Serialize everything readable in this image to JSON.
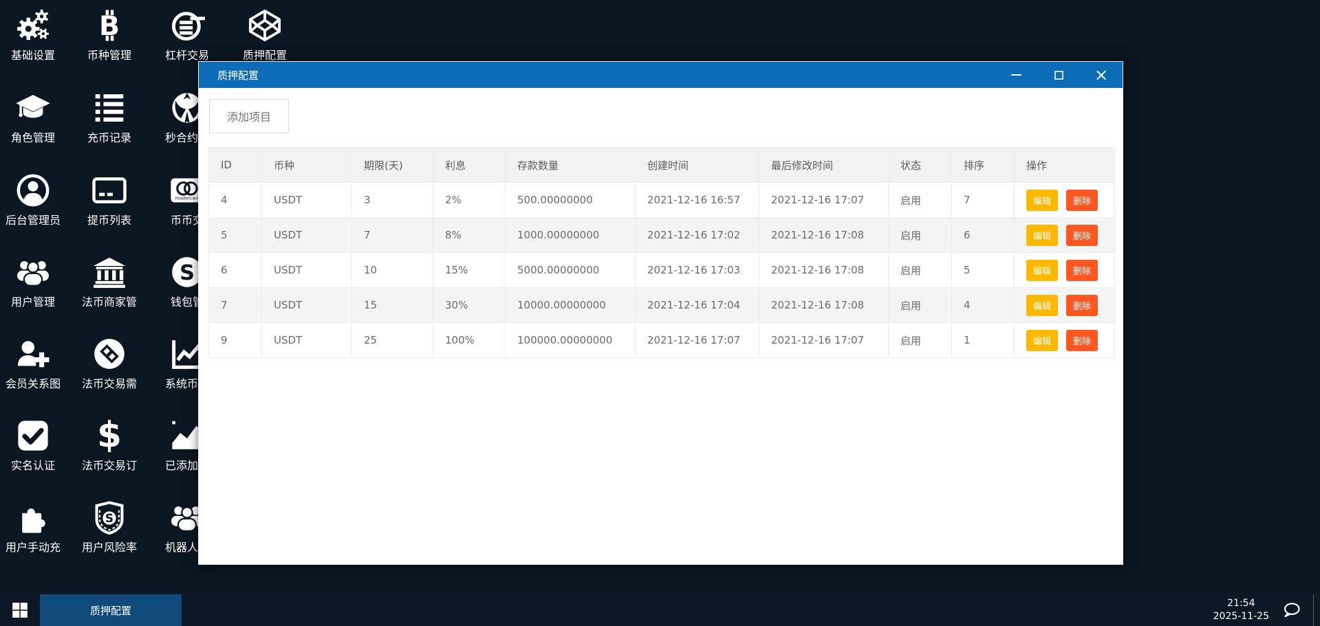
{
  "desktop": {
    "icons": [
      {
        "label": "基础设置",
        "icon": "gears",
        "col": 1,
        "row": 1
      },
      {
        "label": "币种管理",
        "icon": "bitcoin",
        "col": 2,
        "row": 1
      },
      {
        "label": "杠杆交易",
        "icon": "sellsy",
        "col": 3,
        "row": 1
      },
      {
        "label": "质押配置",
        "icon": "codepen",
        "col": 4,
        "row": 1
      },
      {
        "label": "角色管理",
        "icon": "grad-cap",
        "col": 1,
        "row": 2
      },
      {
        "label": "充币记录",
        "icon": "list",
        "col": 2,
        "row": 2
      },
      {
        "label": "秒合约交",
        "icon": "rebel",
        "col": 3,
        "row": 2
      },
      {
        "label": "后台管理员",
        "icon": "user-circle",
        "col": 1,
        "row": 3
      },
      {
        "label": "提币列表",
        "icon": "credit-card",
        "col": 2,
        "row": 3
      },
      {
        "label": "币币交",
        "icon": "mastercard",
        "col": 3,
        "row": 3
      },
      {
        "label": "用户管理",
        "icon": "users",
        "col": 1,
        "row": 4
      },
      {
        "label": "法币商家管",
        "icon": "bank",
        "col": 2,
        "row": 4
      },
      {
        "label": "钱包管",
        "icon": "skype",
        "col": 3,
        "row": 4
      },
      {
        "label": "会员关系图",
        "icon": "user-plus",
        "col": 1,
        "row": 5
      },
      {
        "label": "法币交易需",
        "icon": "gg-circle",
        "col": 2,
        "row": 5
      },
      {
        "label": "系统币行",
        "icon": "line-chart",
        "col": 3,
        "row": 5
      },
      {
        "label": "实名认证",
        "icon": "check-square",
        "col": 1,
        "row": 6
      },
      {
        "label": "法币交易订",
        "icon": "dollar",
        "col": 2,
        "row": 6
      },
      {
        "label": "已添加素",
        "icon": "area-chart",
        "col": 3,
        "row": 6
      },
      {
        "label": "用户手动充",
        "icon": "puzzle",
        "col": 1,
        "row": 7
      },
      {
        "label": "用户风险率",
        "icon": "shield-s",
        "col": 2,
        "row": 7
      },
      {
        "label": "机器人列",
        "icon": "users",
        "col": 3,
        "row": 7
      }
    ]
  },
  "window": {
    "title": "质押配置",
    "add_button_label": "添加项目",
    "table": {
      "headers": [
        "ID",
        "币种",
        "期限(天)",
        "利息",
        "存款数量",
        "创建时间",
        "最后修改时间",
        "状态",
        "排序",
        "操作"
      ],
      "rows": [
        [
          "4",
          "USDT",
          "3",
          "2%",
          "500.00000000",
          "2021-12-16 16:57",
          "2021-12-16 17:07",
          "启用",
          "7"
        ],
        [
          "5",
          "USDT",
          "7",
          "8%",
          "1000.00000000",
          "2021-12-16 17:02",
          "2021-12-16 17:08",
          "启用",
          "6"
        ],
        [
          "6",
          "USDT",
          "10",
          "15%",
          "5000.00000000",
          "2021-12-16 17:03",
          "2021-12-16 17:08",
          "启用",
          "5"
        ],
        [
          "7",
          "USDT",
          "15",
          "30%",
          "10000.00000000",
          "2021-12-16 17:04",
          "2021-12-16 17:08",
          "启用",
          "4"
        ],
        [
          "9",
          "USDT",
          "25",
          "100%",
          "100000.00000000",
          "2021-12-16 17:07",
          "2021-12-16 17:07",
          "启用",
          "1"
        ]
      ],
      "edit_label": "编辑",
      "delete_label": "删除"
    }
  },
  "taskbar": {
    "active_task": "质押配置",
    "time": "21:54",
    "date": "2025-11-25"
  },
  "colors": {
    "desktop_bg": "#0a1622",
    "titlebar_blue": "#0d6cb7",
    "edit_button": "#FFB800",
    "delete_button": "#FF5722",
    "task_active_bg": "#0f4a7b"
  }
}
